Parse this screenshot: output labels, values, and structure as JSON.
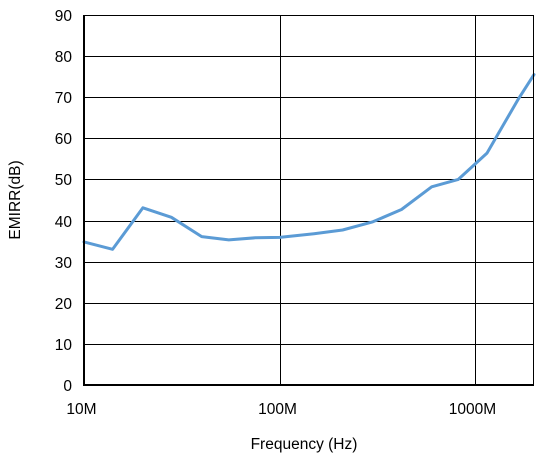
{
  "chart_data": {
    "type": "line",
    "title": "",
    "xlabel": "Frequency (Hz)",
    "ylabel": "EMIRR(dB)",
    "x_scale": "log",
    "xlim": [
      10000000,
      2000000000
    ],
    "ylim": [
      0,
      90
    ],
    "x_ticks": [
      {
        "value": 10000000,
        "label": "10M"
      },
      {
        "value": 100000000,
        "label": "100M"
      },
      {
        "value": 1000000000,
        "label": "1000M"
      }
    ],
    "y_ticks": [
      {
        "value": 0,
        "label": "0"
      },
      {
        "value": 10,
        "label": "10"
      },
      {
        "value": 20,
        "label": "20"
      },
      {
        "value": 30,
        "label": "30"
      },
      {
        "value": 40,
        "label": "40"
      },
      {
        "value": 50,
        "label": "50"
      },
      {
        "value": 60,
        "label": "60"
      },
      {
        "value": 70,
        "label": "70"
      },
      {
        "value": 80,
        "label": "80"
      },
      {
        "value": 90,
        "label": "90"
      }
    ],
    "grid": true,
    "legend": "none",
    "series": [
      {
        "color": "#5b9bd5",
        "x": [
          10000000,
          14000000,
          20000000,
          28000000,
          40000000,
          55000000,
          75000000,
          100000000,
          150000000,
          210000000,
          300000000,
          420000000,
          600000000,
          820000000,
          1150000000,
          1650000000,
          2000000000
        ],
        "y": [
          34.8,
          33.0,
          43.1,
          40.8,
          36.1,
          35.3,
          35.8,
          35.9,
          36.8,
          37.7,
          39.7,
          42.7,
          48.2,
          50.0,
          56.4,
          69.3,
          75.5
        ]
      }
    ]
  },
  "colors": {
    "axis": "#000000",
    "grid": "#000000",
    "line": "#5b9bd5",
    "background": "#ffffff"
  }
}
